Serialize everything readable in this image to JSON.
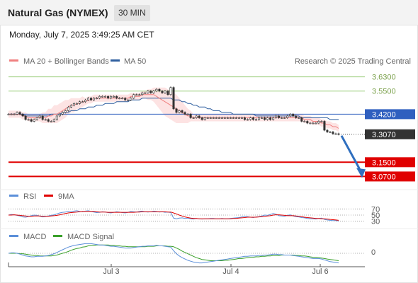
{
  "header": {
    "title": "Natural Gas (NYMEX)",
    "timeframe": "30 MIN"
  },
  "datetime": "Monday, July 7, 2025 3:49:25 AM CET",
  "legend": {
    "ma20": "MA 20 + Bollinger Bands",
    "ma50": "MA 50",
    "credit": "Research © 2025 Trading Central"
  },
  "colors": {
    "ma20": "#f08080",
    "ma50": "#2f5f9f",
    "band": "#fde0e0",
    "resistance": "#9acd7a",
    "support": "#e00000",
    "pivot": "#2f5fbf",
    "last": "#333333",
    "rsi": "#5b8fd9",
    "rsi_ma": "#e00000",
    "macd": "#5b8fd9",
    "macd_signal": "#3aa02a",
    "arrow": "#2f6fbf"
  },
  "chart_data": [
    {
      "type": "candlestick",
      "title": "Natural Gas (NYMEX)",
      "ylim": [
        3.02,
        3.68
      ],
      "x_ticks": [
        "Jul 3",
        "Jul 4",
        "Jul 6"
      ],
      "levels": [
        {
          "label": "3.6300",
          "value": 3.63,
          "kind": "resistance"
        },
        {
          "label": "3.5500",
          "value": 3.55,
          "kind": "resistance"
        },
        {
          "label": "3.4200",
          "value": 3.42,
          "kind": "pivot"
        },
        {
          "label": "3.3070",
          "value": 3.307,
          "kind": "last"
        },
        {
          "label": "3.1500",
          "value": 3.15,
          "kind": "support"
        },
        {
          "label": "3.0700",
          "value": 3.07,
          "kind": "support"
        }
      ],
      "close": [
        3.42,
        3.42,
        3.42,
        3.43,
        3.42,
        3.41,
        3.39,
        3.39,
        3.38,
        3.39,
        3.4,
        3.41,
        3.39,
        3.39,
        3.38,
        3.38,
        3.39,
        3.41,
        3.42,
        3.43,
        3.44,
        3.46,
        3.47,
        3.48,
        3.48,
        3.49,
        3.49,
        3.5,
        3.51,
        3.5,
        3.51,
        3.51,
        3.52,
        3.52,
        3.52,
        3.51,
        3.52,
        3.52,
        3.51,
        3.51,
        3.51,
        3.5,
        3.5,
        3.51,
        3.53,
        3.53,
        3.53,
        3.54,
        3.54,
        3.55,
        3.54,
        3.55,
        3.56,
        3.55,
        3.54,
        3.55,
        3.53,
        3.57,
        3.45,
        3.43,
        3.44,
        3.43,
        3.42,
        3.42,
        3.4,
        3.4,
        3.41,
        3.4,
        3.39,
        3.4,
        3.4,
        3.4,
        3.4,
        3.4,
        3.4,
        3.4,
        3.4,
        3.4,
        3.4,
        3.4,
        3.4,
        3.4,
        3.4,
        3.39,
        3.39,
        3.4,
        3.39,
        3.39,
        3.4,
        3.4,
        3.39,
        3.4,
        3.39,
        3.4,
        3.41,
        3.4,
        3.4,
        3.4,
        3.41,
        3.42,
        3.41,
        3.4,
        3.4,
        3.38,
        3.38,
        3.37,
        3.37,
        3.37,
        3.37,
        3.38,
        3.38,
        3.33,
        3.32,
        3.32,
        3.31,
        3.31,
        3.307
      ],
      "ma20": [
        3.42,
        3.42,
        3.42,
        3.42,
        3.42,
        3.41,
        3.41,
        3.4,
        3.4,
        3.4,
        3.4,
        3.4,
        3.4,
        3.4,
        3.41,
        3.41,
        3.42,
        3.42,
        3.43,
        3.44,
        3.45,
        3.46,
        3.47,
        3.47,
        3.48,
        3.48,
        3.49,
        3.49,
        3.5,
        3.5,
        3.51,
        3.51,
        3.51,
        3.51,
        3.51,
        3.51,
        3.51,
        3.51,
        3.51,
        3.51,
        3.51,
        3.51,
        3.51,
        3.52,
        3.52,
        3.52,
        3.52,
        3.53,
        3.53,
        3.53,
        3.53,
        3.53,
        3.52,
        3.51,
        3.5,
        3.49,
        3.48,
        3.47,
        3.46,
        3.45,
        3.44,
        3.43,
        3.42,
        3.41,
        3.41,
        3.4,
        3.4,
        3.4,
        3.4,
        3.4,
        3.4,
        3.4,
        3.4,
        3.4,
        3.4,
        3.4,
        3.4,
        3.4,
        3.4,
        3.4,
        3.4,
        3.4,
        3.4,
        3.4,
        3.4,
        3.4,
        3.4,
        3.4,
        3.4,
        3.4,
        3.4,
        3.4,
        3.4,
        3.4,
        3.4,
        3.4,
        3.4,
        3.4,
        3.4,
        3.4,
        3.4,
        3.4,
        3.4,
        3.4,
        3.39,
        3.39,
        3.39,
        3.38,
        3.38,
        3.38,
        3.37,
        3.37,
        3.36,
        3.36,
        3.35,
        3.35,
        3.34
      ],
      "ma50": [
        3.42,
        3.42,
        3.42,
        3.42,
        3.42,
        3.42,
        3.41,
        3.41,
        3.41,
        3.41,
        3.41,
        3.41,
        3.41,
        3.41,
        3.41,
        3.42,
        3.42,
        3.42,
        3.42,
        3.43,
        3.43,
        3.43,
        3.44,
        3.44,
        3.44,
        3.45,
        3.45,
        3.45,
        3.46,
        3.46,
        3.46,
        3.47,
        3.47,
        3.47,
        3.48,
        3.48,
        3.48,
        3.48,
        3.49,
        3.49,
        3.49,
        3.49,
        3.49,
        3.5,
        3.5,
        3.5,
        3.5,
        3.51,
        3.51,
        3.51,
        3.51,
        3.51,
        3.51,
        3.51,
        3.51,
        3.51,
        3.51,
        3.51,
        3.5,
        3.5,
        3.5,
        3.49,
        3.49,
        3.48,
        3.48,
        3.47,
        3.47,
        3.46,
        3.46,
        3.46,
        3.45,
        3.45,
        3.44,
        3.44,
        3.44,
        3.43,
        3.43,
        3.43,
        3.43,
        3.42,
        3.42,
        3.42,
        3.42,
        3.42,
        3.42,
        3.42,
        3.42,
        3.41,
        3.41,
        3.41,
        3.41,
        3.41,
        3.41,
        3.41,
        3.41,
        3.41,
        3.41,
        3.41,
        3.41,
        3.41,
        3.41,
        3.41,
        3.41,
        3.4,
        3.4,
        3.4,
        3.4,
        3.4,
        3.4,
        3.4,
        3.4,
        3.4,
        3.4,
        3.39,
        3.39,
        3.39,
        3.39
      ],
      "bb_half_width": [
        0.02,
        0.02,
        0.02,
        0.02,
        0.02,
        0.02,
        0.02,
        0.02,
        0.02,
        0.02,
        0.02,
        0.02,
        0.03,
        0.03,
        0.04,
        0.04,
        0.05,
        0.05,
        0.05,
        0.05,
        0.05,
        0.04,
        0.04,
        0.04,
        0.03,
        0.03,
        0.03,
        0.02,
        0.02,
        0.02,
        0.02,
        0.02,
        0.02,
        0.02,
        0.02,
        0.02,
        0.02,
        0.02,
        0.02,
        0.02,
        0.02,
        0.02,
        0.02,
        0.02,
        0.02,
        0.02,
        0.02,
        0.02,
        0.02,
        0.03,
        0.03,
        0.04,
        0.05,
        0.06,
        0.07,
        0.08,
        0.08,
        0.08,
        0.08,
        0.08,
        0.07,
        0.06,
        0.05,
        0.04,
        0.03,
        0.02,
        0.02,
        0.02,
        0.02,
        0.02,
        0.02,
        0.02,
        0.02,
        0.02,
        0.02,
        0.02,
        0.02,
        0.02,
        0.02,
        0.02,
        0.02,
        0.02,
        0.02,
        0.02,
        0.02,
        0.02,
        0.02,
        0.02,
        0.02,
        0.02,
        0.02,
        0.02,
        0.02,
        0.02,
        0.02,
        0.02,
        0.02,
        0.02,
        0.02,
        0.02,
        0.02,
        0.02,
        0.02,
        0.02,
        0.02,
        0.02,
        0.02,
        0.02,
        0.02,
        0.02,
        0.02,
        0.02,
        0.02,
        0.02,
        0.02,
        0.02,
        0.02
      ],
      "projection": {
        "from": 3.307,
        "to": 3.07
      }
    },
    {
      "type": "line",
      "title": "RSI",
      "series": [
        {
          "name": "RSI"
        },
        {
          "name": "9MA"
        }
      ],
      "levels": [
        70,
        50,
        30
      ],
      "ylim": [
        20,
        80
      ]
    },
    {
      "type": "line",
      "title": "MACD",
      "series": [
        {
          "name": "MACD"
        },
        {
          "name": "MACD Signal"
        }
      ],
      "levels": [
        0
      ]
    }
  ],
  "rsi_values": [
    50,
    52,
    51,
    49,
    47,
    44,
    43,
    45,
    48,
    50,
    49,
    46,
    44,
    45,
    47,
    49,
    51,
    54,
    57,
    59,
    60,
    62,
    61,
    63,
    64,
    62,
    61,
    63,
    64,
    62,
    60,
    58,
    59,
    61,
    60,
    58,
    57,
    59,
    61,
    60,
    58,
    57,
    59,
    62,
    61,
    60,
    62,
    63,
    61,
    60,
    61,
    63,
    62,
    60,
    61,
    59,
    60,
    58,
    40,
    38,
    40,
    41,
    39,
    40,
    38,
    37,
    39,
    38,
    37,
    38,
    38,
    39,
    39,
    38,
    38,
    39,
    38,
    38,
    39,
    40,
    41,
    42,
    44,
    46,
    45,
    43,
    42,
    44,
    45,
    47,
    50,
    49,
    52,
    55,
    53,
    48,
    47,
    46,
    49,
    51,
    47,
    45,
    44,
    42,
    41,
    39,
    38,
    38,
    37,
    39,
    40,
    36,
    34,
    33,
    32,
    32,
    31
  ],
  "rsi_ma_values": [
    50,
    50,
    51,
    50,
    49,
    48,
    47,
    46,
    46,
    47,
    47,
    47,
    46,
    46,
    46,
    47,
    48,
    49,
    51,
    53,
    55,
    57,
    58,
    59,
    60,
    61,
    62,
    62,
    62,
    62,
    62,
    61,
    60,
    60,
    60,
    59,
    59,
    59,
    59,
    59,
    59,
    59,
    59,
    59,
    59,
    60,
    60,
    61,
    61,
    61,
    61,
    61,
    61,
    61,
    61,
    61,
    60,
    60,
    57,
    54,
    50,
    47,
    44,
    42,
    40,
    39,
    39,
    38,
    38,
    38,
    38,
    38,
    38,
    38,
    38,
    38,
    38,
    38,
    38,
    39,
    39,
    40,
    41,
    42,
    43,
    43,
    43,
    43,
    44,
    45,
    46,
    47,
    48,
    50,
    51,
    51,
    50,
    49,
    48,
    48,
    48,
    47,
    46,
    45,
    43,
    42,
    41,
    40,
    39,
    39,
    38,
    38,
    37,
    36,
    35,
    34,
    33
  ],
  "macd_values": [
    0,
    0.001,
    0.001,
    0,
    -0.002,
    -0.004,
    -0.006,
    -0.007,
    -0.008,
    -0.008,
    -0.007,
    -0.007,
    -0.007,
    -0.006,
    -0.005,
    -0.003,
    -0.001,
    0.002,
    0.005,
    0.008,
    0.011,
    0.014,
    0.016,
    0.018,
    0.019,
    0.02,
    0.021,
    0.022,
    0.022,
    0.022,
    0.021,
    0.02,
    0.019,
    0.019,
    0.018,
    0.017,
    0.016,
    0.016,
    0.015,
    0.014,
    0.013,
    0.012,
    0.012,
    0.012,
    0.013,
    0.014,
    0.015,
    0.016,
    0.016,
    0.017,
    0.017,
    0.017,
    0.018,
    0.017,
    0.017,
    0.016,
    0.015,
    0.014,
    0.006,
    -0.001,
    -0.006,
    -0.01,
    -0.013,
    -0.016,
    -0.018,
    -0.02,
    -0.021,
    -0.022,
    -0.022,
    -0.021,
    -0.02,
    -0.019,
    -0.018,
    -0.017,
    -0.016,
    -0.015,
    -0.014,
    -0.013,
    -0.012,
    -0.011,
    -0.01,
    -0.009,
    -0.008,
    -0.007,
    -0.007,
    -0.006,
    -0.006,
    -0.006,
    -0.005,
    -0.005,
    -0.004,
    -0.004,
    -0.003,
    -0.002,
    -0.002,
    -0.003,
    -0.003,
    -0.004,
    -0.004,
    -0.004,
    -0.005,
    -0.006,
    -0.007,
    -0.008,
    -0.009,
    -0.01,
    -0.011,
    -0.012,
    -0.012,
    -0.012,
    -0.013,
    -0.015,
    -0.017,
    -0.019,
    -0.02,
    -0.021,
    -0.022
  ],
  "macd_signal_values": [
    0,
    0,
    0,
    0,
    -0.001,
    -0.001,
    -0.002,
    -0.003,
    -0.004,
    -0.005,
    -0.005,
    -0.006,
    -0.006,
    -0.006,
    -0.006,
    -0.006,
    -0.005,
    -0.004,
    -0.002,
    0,
    0.002,
    0.004,
    0.007,
    0.009,
    0.011,
    0.012,
    0.014,
    0.015,
    0.017,
    0.018,
    0.018,
    0.019,
    0.019,
    0.019,
    0.019,
    0.019,
    0.018,
    0.018,
    0.017,
    0.017,
    0.016,
    0.016,
    0.015,
    0.015,
    0.015,
    0.015,
    0.015,
    0.015,
    0.015,
    0.016,
    0.016,
    0.016,
    0.017,
    0.017,
    0.017,
    0.017,
    0.016,
    0.016,
    0.015,
    0.012,
    0.009,
    0.005,
    0.002,
    -0.001,
    -0.004,
    -0.007,
    -0.01,
    -0.012,
    -0.014,
    -0.015,
    -0.016,
    -0.017,
    -0.017,
    -0.017,
    -0.017,
    -0.017,
    -0.016,
    -0.016,
    -0.015,
    -0.014,
    -0.013,
    -0.012,
    -0.012,
    -0.011,
    -0.01,
    -0.009,
    -0.009,
    -0.008,
    -0.008,
    -0.007,
    -0.007,
    -0.006,
    -0.006,
    -0.005,
    -0.005,
    -0.005,
    -0.004,
    -0.004,
    -0.004,
    -0.004,
    -0.004,
    -0.005,
    -0.005,
    -0.006,
    -0.006,
    -0.007,
    -0.008,
    -0.009,
    -0.009,
    -0.01,
    -0.011,
    -0.012,
    -0.013,
    -0.014,
    -0.015,
    -0.016,
    -0.017
  ]
}
